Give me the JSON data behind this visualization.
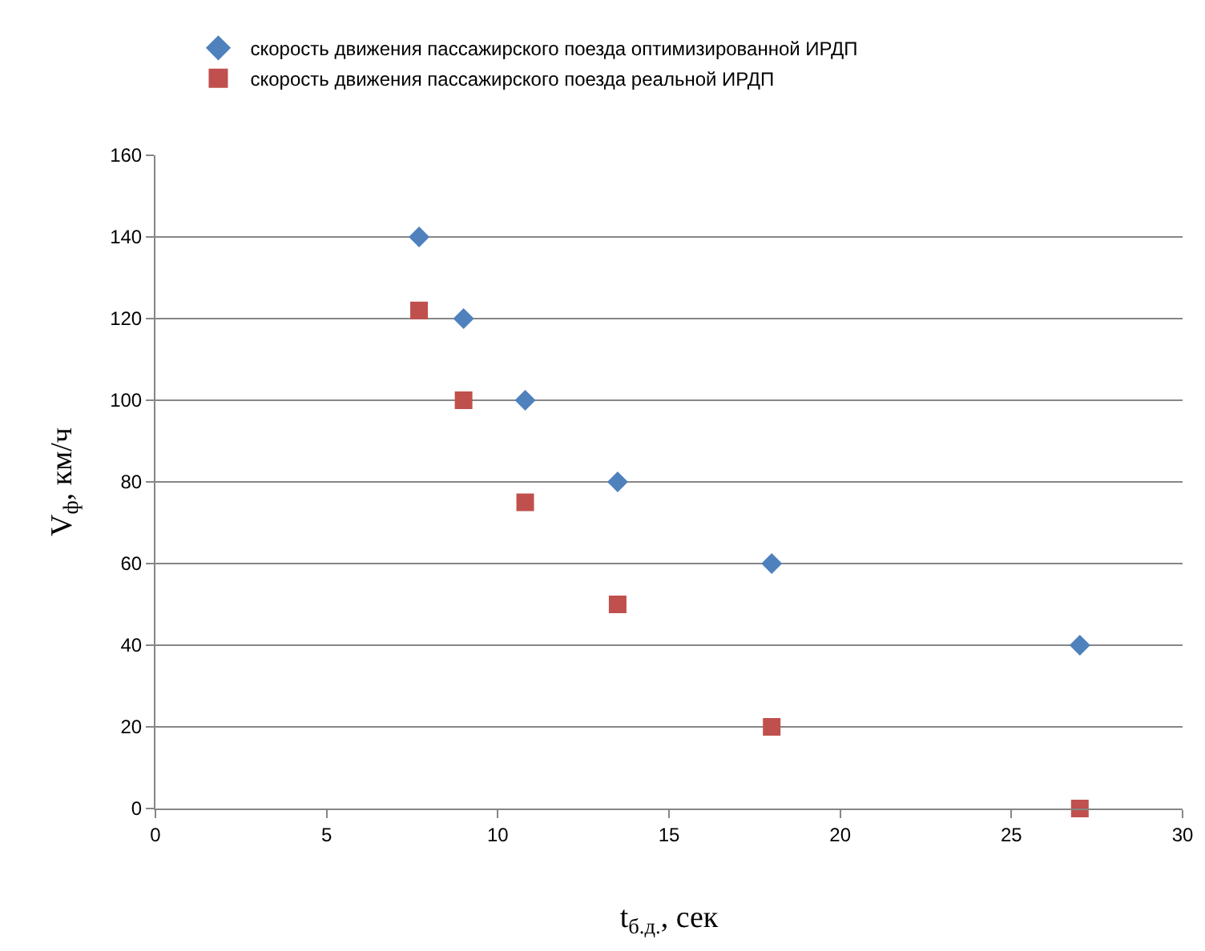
{
  "chart_data": {
    "type": "scatter",
    "xlabel": "t$_{б.д.}$, сек",
    "ylabel": "V$_{ф}$, км/ч",
    "x": [
      7.7,
      9,
      10.8,
      13.5,
      18,
      27
    ],
    "series": [
      {
        "name": "скорость движения пассажирского поезда оптимизированной ИРДП",
        "color": "#4f81bd",
        "marker": "diamond",
        "values": [
          140,
          120,
          100,
          80,
          60,
          40
        ]
      },
      {
        "name": "скорость движения пассажирского поезда реальной ИРДП",
        "color": "#c0504d",
        "marker": "square",
        "values": [
          122,
          100,
          75,
          50,
          20,
          0
        ]
      }
    ],
    "xlim": [
      0,
      30
    ],
    "xticks": [
      0,
      5,
      10,
      15,
      20,
      25,
      30
    ],
    "ylim": [
      0,
      160
    ],
    "yticks": [
      0,
      20,
      40,
      60,
      80,
      100,
      120,
      140,
      160
    ],
    "grid": "y",
    "legend": "top"
  }
}
